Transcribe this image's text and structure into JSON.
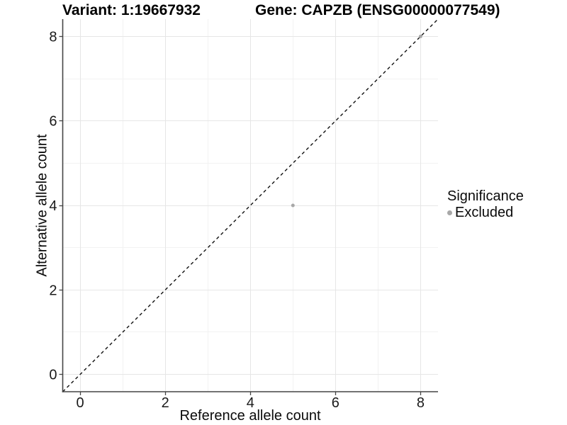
{
  "chart_data": {
    "type": "scatter",
    "title_left": "Variant: 1:19667932",
    "title_right": "Gene: CAPZB (ENSG00000077549)",
    "xlabel": "Reference allele count",
    "ylabel": "Alternative allele count",
    "xlim": [
      -0.41,
      8.41
    ],
    "ylim": [
      -0.41,
      8.41
    ],
    "x_major_ticks": [
      0,
      2,
      4,
      6,
      8
    ],
    "y_major_ticks": [
      0,
      2,
      4,
      6,
      8
    ],
    "x_minor_ticks": [
      1,
      3,
      5,
      7
    ],
    "y_minor_ticks": [
      1,
      3,
      5,
      7
    ],
    "grid": "major and minor gridlines, white panel background",
    "series": [
      {
        "name": "Excluded",
        "color": "#a8a8a8",
        "points": [
          {
            "x": 5,
            "y": 4
          },
          {
            "x": 8,
            "y": 8
          }
        ]
      }
    ],
    "reference_line": {
      "kind": "identity y=x",
      "style": "dashed",
      "color": "#111111"
    },
    "legend": {
      "position": "right",
      "title": "Significance",
      "items": [
        {
          "label": "Excluded",
          "color": "#a8a8a8"
        }
      ]
    },
    "styles": {
      "grid_major_color": "#e6e6e6",
      "grid_minor_color": "#f2f2f2",
      "axis_line_color": "#454545",
      "tick_text_color": "#1a1a1a",
      "background": "#ffffff"
    }
  }
}
